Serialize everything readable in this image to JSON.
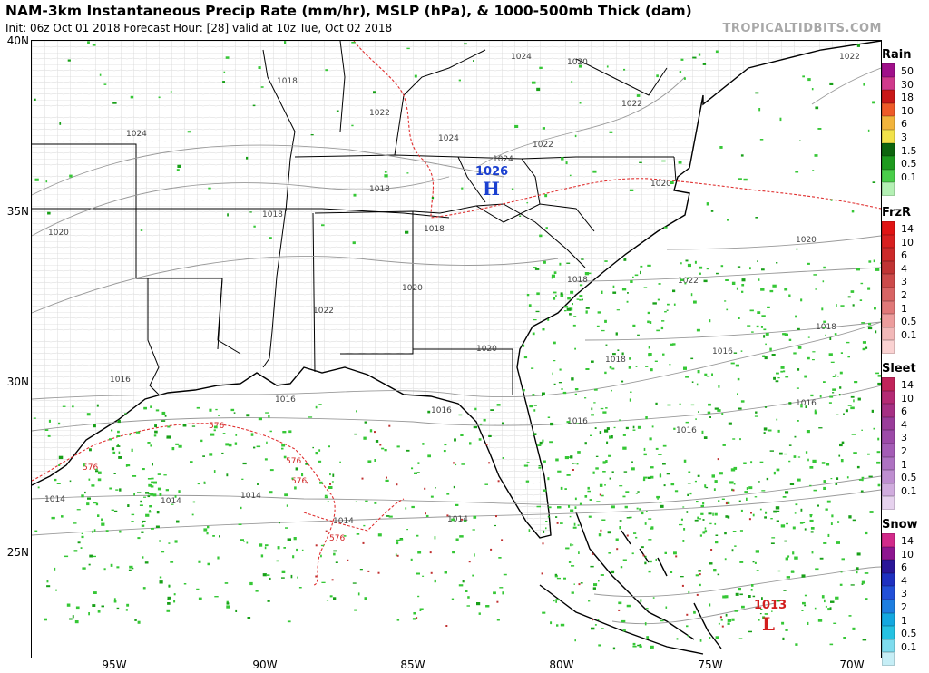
{
  "header": {
    "title": "NAM-3km Instantaneous Precip Rate (mm/hr), MSLP (hPa), & 1000-500mb Thick (dam)",
    "subtitle": "Init: 06z Oct 01 2018   Forecast Hour: [28]   valid at 10z Tue, Oct 02 2018",
    "brand": "TROPICALTIDBITS.COM"
  },
  "axes": {
    "lat_labels": [
      "40N",
      "35N",
      "30N",
      "25N"
    ],
    "lon_labels": [
      "95W",
      "90W",
      "85W",
      "80W",
      "75W",
      "70W"
    ]
  },
  "map": {
    "pressure_centers": [
      {
        "type": "H",
        "value": "1026",
        "color": "#1a3fd0"
      },
      {
        "type": "L",
        "value": "1013",
        "color": "#d21e1e"
      }
    ],
    "isobar_labels": [
      "1024",
      "1020",
      "1022",
      "1018",
      "1024",
      "1022",
      "1024",
      "1024",
      "1022",
      "1022",
      "1020",
      "1018",
      "1018",
      "1020",
      "1018",
      "1020",
      "1022",
      "1020",
      "1018",
      "1020",
      "1022",
      "1018",
      "1016",
      "1018",
      "1016",
      "1016",
      "1016",
      "1016",
      "1016",
      "1016",
      "1014",
      "1014",
      "1014",
      "1014",
      "1014"
    ],
    "thickness_labels": [
      "576",
      "576",
      "576",
      "576",
      "576"
    ],
    "colors": {
      "isobar": "#9a9a9a",
      "thickness": "#e03030",
      "coast": "#000000",
      "precip_light": "#36c736",
      "precip_mid": "#18a018",
      "precip_heavy": "#c03030"
    }
  },
  "legends": [
    {
      "title": "Rain",
      "levels": [
        "50",
        "30",
        "18",
        "10",
        "6",
        "3",
        "1.5",
        "0.5",
        "0.1"
      ],
      "colors": [
        "#a0108a",
        "#d03a8c",
        "#c81818",
        "#ee5a28",
        "#f2b43c",
        "#f2e24a",
        "#0e640e",
        "#1e9a1e",
        "#4ace4a",
        "#b4f0b4"
      ]
    },
    {
      "title": "FrzR",
      "levels": [
        "14",
        "10",
        "6",
        "4",
        "3",
        "2",
        "1",
        "0.5",
        "0.1"
      ],
      "colors": [
        "#e01414",
        "#d82020",
        "#cc2a2a",
        "#c03434",
        "#cc4a4a",
        "#d86464",
        "#e07878",
        "#ec9c9c",
        "#f2b8b8",
        "#fad2d2"
      ]
    },
    {
      "title": "Sleet",
      "levels": [
        "14",
        "10",
        "6",
        "4",
        "3",
        "2",
        "1",
        "0.5",
        "0.1"
      ],
      "colors": [
        "#c0245a",
        "#b42a74",
        "#a63084",
        "#9a3c9a",
        "#9c4aa8",
        "#a45cb6",
        "#ae72c2",
        "#be8ed0",
        "#d0acde",
        "#e6d2ee"
      ]
    },
    {
      "title": "Snow",
      "levels": [
        "14",
        "10",
        "6",
        "4",
        "3",
        "2",
        "1",
        "0.5",
        "0.1"
      ],
      "colors": [
        "#d22a8a",
        "#8e1690",
        "#2a1698",
        "#1e30c0",
        "#2250d8",
        "#1e7ee0",
        "#14a8e0",
        "#26c2e2",
        "#7edcee",
        "#c6eef6"
      ]
    }
  ]
}
